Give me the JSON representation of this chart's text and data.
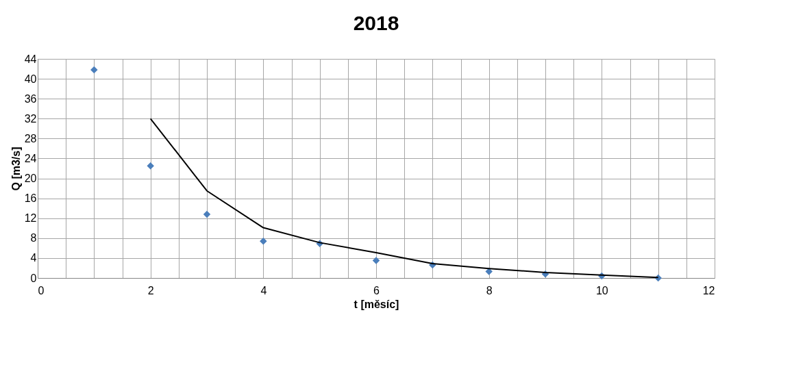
{
  "chart_data": {
    "type": "scatter",
    "title": "2018",
    "xlabel": "t [měsíc]",
    "ylabel": "Q [m3/s]",
    "xlim": [
      0,
      12
    ],
    "ylim": [
      0,
      44
    ],
    "xticks": [
      0,
      {
        "value": 0.5,
        "label": null
      },
      {
        "value": 1,
        "label": null
      },
      {
        "value": 1.5,
        "label": null
      },
      2,
      {
        "value": 2.5,
        "label": null
      },
      {
        "value": 3,
        "label": null
      },
      {
        "value": 3.5,
        "label": null
      },
      4,
      {
        "value": 4.5,
        "label": null
      },
      {
        "value": 5,
        "label": null
      },
      {
        "value": 5.5,
        "label": null
      },
      6,
      {
        "value": 6.5,
        "label": null
      },
      {
        "value": 7,
        "label": null
      },
      {
        "value": 7.5,
        "label": null
      },
      8,
      {
        "value": 8.5,
        "label": null
      },
      {
        "value": 9,
        "label": null
      },
      {
        "value": 9.5,
        "label": null
      },
      10,
      {
        "value": 10.5,
        "label": null
      },
      {
        "value": 11,
        "label": null
      },
      {
        "value": 11.5,
        "label": null
      },
      12
    ],
    "yticks": [
      0,
      4,
      8,
      12,
      16,
      20,
      24,
      28,
      32,
      36,
      40,
      44
    ],
    "grid": true,
    "series": [
      {
        "type": "scatter",
        "marker": "diamond",
        "color": "#4a7ebb",
        "x": [
          1,
          2,
          3,
          4,
          5,
          6,
          7,
          8,
          9,
          10,
          11
        ],
        "values": [
          41.8,
          22.5,
          12.8,
          7.4,
          6.9,
          3.5,
          2.6,
          1.3,
          0.8,
          0.4,
          0.0
        ]
      },
      {
        "type": "line",
        "marker": "none",
        "color": "#000000",
        "x": [
          2,
          3,
          4,
          5,
          6,
          7,
          8,
          9,
          10,
          11
        ],
        "values": [
          32.0,
          17.5,
          10.1,
          7.1,
          5.1,
          2.9,
          1.9,
          1.1,
          0.6,
          0.1
        ]
      }
    ]
  }
}
